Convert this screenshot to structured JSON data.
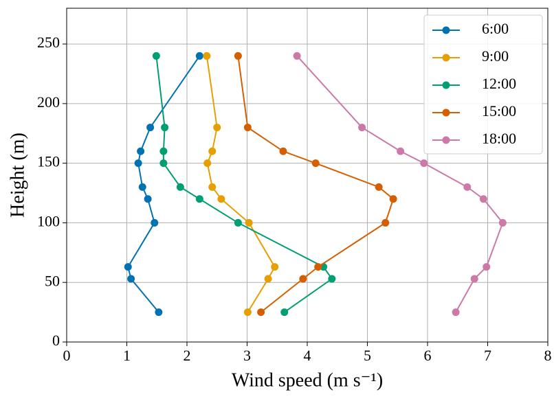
{
  "chart_data": {
    "type": "line",
    "xlabel": "Wind speed (m s⁻¹)",
    "ylabel": "Height (m)",
    "xlim": [
      0,
      8
    ],
    "ylim": [
      0,
      280
    ],
    "xticks": [
      0,
      1,
      2,
      3,
      4,
      5,
      6,
      7,
      8
    ],
    "yticks": [
      0,
      50,
      100,
      150,
      200,
      250
    ],
    "grid": true,
    "legend": "upper right",
    "series": [
      {
        "name": "6:00",
        "color": "#0072b2",
        "x": [
          1.53,
          1.07,
          1.02,
          1.46,
          1.35,
          1.26,
          1.19,
          1.23,
          1.39,
          2.21
        ],
        "values": [
          25,
          53,
          63,
          100,
          120,
          130,
          150,
          160,
          180,
          240
        ]
      },
      {
        "name": "9:00",
        "color": "#e69f00",
        "x": [
          3.01,
          3.35,
          3.46,
          3.03,
          2.57,
          2.42,
          2.34,
          2.42,
          2.5,
          2.33
        ],
        "values": [
          25,
          53,
          63,
          100,
          120,
          130,
          150,
          160,
          180,
          240
        ]
      },
      {
        "name": "12:00",
        "color": "#009e73",
        "x": [
          3.62,
          4.41,
          4.27,
          2.85,
          2.21,
          1.89,
          1.61,
          1.61,
          1.63,
          1.49
        ],
        "values": [
          25,
          53,
          63,
          100,
          120,
          130,
          150,
          160,
          180,
          240
        ]
      },
      {
        "name": "15:00",
        "color": "#d55e00",
        "x": [
          3.23,
          3.93,
          4.18,
          5.3,
          5.43,
          5.19,
          4.14,
          3.6,
          3.01,
          2.85
        ],
        "values": [
          25,
          53,
          63,
          100,
          120,
          130,
          150,
          160,
          180,
          240
        ]
      },
      {
        "name": "18:00",
        "color": "#cc79a7",
        "x": [
          6.47,
          6.78,
          6.98,
          7.25,
          6.93,
          6.66,
          5.94,
          5.55,
          4.91,
          3.83
        ],
        "values": [
          25,
          53,
          63,
          100,
          120,
          130,
          150,
          160,
          180,
          240
        ]
      }
    ]
  }
}
